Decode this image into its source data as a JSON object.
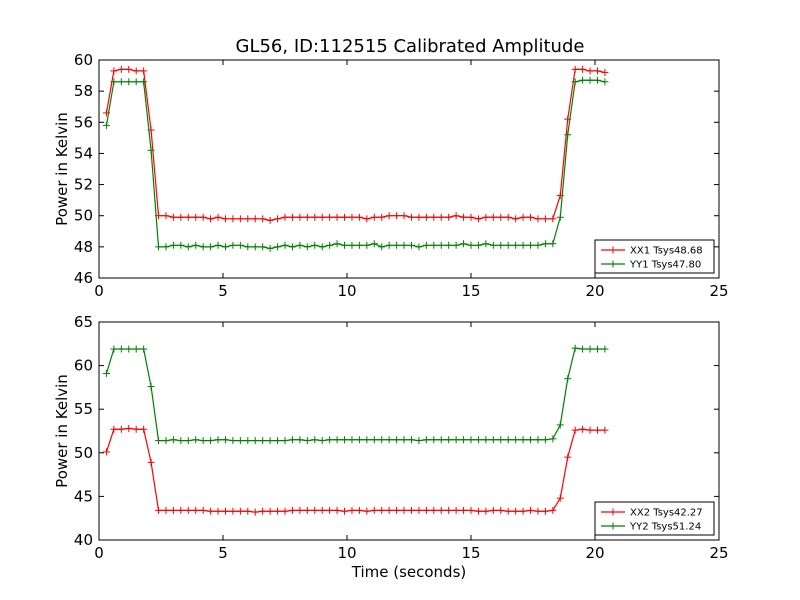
{
  "figure": {
    "title": "GL56, ID:112515 Calibrated Amplitude"
  },
  "chart_data": [
    {
      "type": "line",
      "title": "GL56, ID:112515 Calibrated Amplitude",
      "xlabel": "",
      "ylabel": "Power in Kelvin",
      "xlim": [
        0,
        25
      ],
      "ylim": [
        46,
        60
      ],
      "xticks": [
        0,
        5,
        10,
        15,
        20,
        25
      ],
      "yticks": [
        46,
        48,
        50,
        52,
        54,
        56,
        58,
        60
      ],
      "grid": false,
      "legend_position": "lower-right",
      "series": [
        {
          "name": "XX1 Tsys48.68",
          "color": "#ff0000",
          "x": [
            0.3,
            0.6,
            0.9,
            1.2,
            1.5,
            1.8,
            2.1,
            2.4,
            2.7,
            3.0,
            3.3,
            3.6,
            3.9,
            4.2,
            4.5,
            4.8,
            5.1,
            5.4,
            5.7,
            6.0,
            6.3,
            6.6,
            6.9,
            7.2,
            7.5,
            7.8,
            8.1,
            8.4,
            8.7,
            9.0,
            9.3,
            9.6,
            9.9,
            10.2,
            10.5,
            10.8,
            11.1,
            11.4,
            11.7,
            12.0,
            12.3,
            12.6,
            12.9,
            13.2,
            13.5,
            13.8,
            14.1,
            14.4,
            14.7,
            15.0,
            15.3,
            15.6,
            15.9,
            16.2,
            16.5,
            16.8,
            17.1,
            17.4,
            17.7,
            18.0,
            18.3,
            18.6,
            18.9,
            19.2,
            19.5,
            19.8,
            20.1,
            20.4
          ],
          "y": [
            56.6,
            59.3,
            59.4,
            59.4,
            59.3,
            59.3,
            55.5,
            50.0,
            50.0,
            49.9,
            49.9,
            49.9,
            49.9,
            49.9,
            49.8,
            49.9,
            49.8,
            49.8,
            49.8,
            49.8,
            49.8,
            49.8,
            49.7,
            49.8,
            49.9,
            49.9,
            49.9,
            49.9,
            49.9,
            49.9,
            49.9,
            49.9,
            49.9,
            49.9,
            49.9,
            49.8,
            49.9,
            49.9,
            50.0,
            50.0,
            50.0,
            49.9,
            49.9,
            49.9,
            49.9,
            49.9,
            49.9,
            50.0,
            49.9,
            49.9,
            49.8,
            49.9,
            49.9,
            49.9,
            49.9,
            49.8,
            49.9,
            49.9,
            49.8,
            49.8,
            49.8,
            51.3,
            56.2,
            59.4,
            59.4,
            59.3,
            59.3,
            59.2
          ]
        },
        {
          "name": "YY1 Tsys47.80",
          "color": "#008000",
          "x": [
            0.3,
            0.6,
            0.9,
            1.2,
            1.5,
            1.8,
            2.1,
            2.4,
            2.7,
            3.0,
            3.3,
            3.6,
            3.9,
            4.2,
            4.5,
            4.8,
            5.1,
            5.4,
            5.7,
            6.0,
            6.3,
            6.6,
            6.9,
            7.2,
            7.5,
            7.8,
            8.1,
            8.4,
            8.7,
            9.0,
            9.3,
            9.6,
            9.9,
            10.2,
            10.5,
            10.8,
            11.1,
            11.4,
            11.7,
            12.0,
            12.3,
            12.6,
            12.9,
            13.2,
            13.5,
            13.8,
            14.1,
            14.4,
            14.7,
            15.0,
            15.3,
            15.6,
            15.9,
            16.2,
            16.5,
            16.8,
            17.1,
            17.4,
            17.7,
            18.0,
            18.3,
            18.6,
            18.9,
            19.2,
            19.5,
            19.8,
            20.1,
            20.4
          ],
          "y": [
            55.8,
            58.6,
            58.6,
            58.6,
            58.6,
            58.6,
            54.2,
            48.0,
            48.0,
            48.1,
            48.1,
            48.0,
            48.1,
            48.0,
            48.0,
            48.1,
            48.0,
            48.1,
            48.1,
            48.0,
            48.0,
            48.0,
            47.9,
            48.0,
            48.1,
            48.0,
            48.1,
            48.0,
            48.1,
            48.0,
            48.1,
            48.2,
            48.1,
            48.1,
            48.1,
            48.1,
            48.2,
            48.0,
            48.1,
            48.1,
            48.1,
            48.1,
            48.0,
            48.1,
            48.1,
            48.1,
            48.1,
            48.1,
            48.2,
            48.1,
            48.1,
            48.2,
            48.1,
            48.1,
            48.1,
            48.1,
            48.1,
            48.1,
            48.1,
            48.2,
            48.2,
            49.9,
            55.2,
            58.6,
            58.7,
            58.7,
            58.7,
            58.6
          ]
        }
      ]
    },
    {
      "type": "line",
      "title": "",
      "xlabel": "Time (seconds)",
      "ylabel": "Power in Kelvin",
      "xlim": [
        0,
        25
      ],
      "ylim": [
        40,
        65
      ],
      "xticks": [
        0,
        5,
        10,
        15,
        20,
        25
      ],
      "yticks": [
        40,
        45,
        50,
        55,
        60,
        65
      ],
      "grid": false,
      "legend_position": "lower-right",
      "series": [
        {
          "name": "XX2 Tsys42.27",
          "color": "#ff0000",
          "x": [
            0.3,
            0.6,
            0.9,
            1.2,
            1.5,
            1.8,
            2.1,
            2.4,
            2.7,
            3.0,
            3.3,
            3.6,
            3.9,
            4.2,
            4.5,
            4.8,
            5.1,
            5.4,
            5.7,
            6.0,
            6.3,
            6.6,
            6.9,
            7.2,
            7.5,
            7.8,
            8.1,
            8.4,
            8.7,
            9.0,
            9.3,
            9.6,
            9.9,
            10.2,
            10.5,
            10.8,
            11.1,
            11.4,
            11.7,
            12.0,
            12.3,
            12.6,
            12.9,
            13.2,
            13.5,
            13.8,
            14.1,
            14.4,
            14.7,
            15.0,
            15.3,
            15.6,
            15.9,
            16.2,
            16.5,
            16.8,
            17.1,
            17.4,
            17.7,
            18.0,
            18.3,
            18.6,
            18.9,
            19.2,
            19.5,
            19.8,
            20.1,
            20.4
          ],
          "y": [
            50.1,
            52.7,
            52.7,
            52.8,
            52.7,
            52.7,
            48.9,
            43.4,
            43.4,
            43.4,
            43.4,
            43.4,
            43.4,
            43.4,
            43.3,
            43.3,
            43.3,
            43.3,
            43.3,
            43.3,
            43.2,
            43.3,
            43.3,
            43.3,
            43.3,
            43.4,
            43.4,
            43.4,
            43.4,
            43.4,
            43.4,
            43.4,
            43.3,
            43.4,
            43.4,
            43.3,
            43.4,
            43.4,
            43.4,
            43.4,
            43.4,
            43.4,
            43.4,
            43.4,
            43.4,
            43.4,
            43.4,
            43.4,
            43.4,
            43.4,
            43.3,
            43.3,
            43.4,
            43.4,
            43.3,
            43.3,
            43.3,
            43.4,
            43.3,
            43.3,
            43.4,
            44.8,
            49.5,
            52.6,
            52.7,
            52.6,
            52.6,
            52.6
          ]
        },
        {
          "name": "YY2 Tsys51.24",
          "color": "#008000",
          "x": [
            0.3,
            0.6,
            0.9,
            1.2,
            1.5,
            1.8,
            2.1,
            2.4,
            2.7,
            3.0,
            3.3,
            3.6,
            3.9,
            4.2,
            4.5,
            4.8,
            5.1,
            5.4,
            5.7,
            6.0,
            6.3,
            6.6,
            6.9,
            7.2,
            7.5,
            7.8,
            8.1,
            8.4,
            8.7,
            9.0,
            9.3,
            9.6,
            9.9,
            10.2,
            10.5,
            10.8,
            11.1,
            11.4,
            11.7,
            12.0,
            12.3,
            12.6,
            12.9,
            13.2,
            13.5,
            13.8,
            14.1,
            14.4,
            14.7,
            15.0,
            15.3,
            15.6,
            15.9,
            16.2,
            16.5,
            16.8,
            17.1,
            17.4,
            17.7,
            18.0,
            18.3,
            18.6,
            18.9,
            19.2,
            19.5,
            19.8,
            20.1,
            20.4
          ],
          "y": [
            59.1,
            61.9,
            61.9,
            61.9,
            61.9,
            61.9,
            57.6,
            51.4,
            51.4,
            51.5,
            51.4,
            51.4,
            51.5,
            51.4,
            51.4,
            51.5,
            51.5,
            51.4,
            51.4,
            51.4,
            51.4,
            51.4,
            51.4,
            51.4,
            51.4,
            51.5,
            51.5,
            51.4,
            51.5,
            51.4,
            51.5,
            51.5,
            51.5,
            51.5,
            51.5,
            51.5,
            51.5,
            51.5,
            51.5,
            51.5,
            51.5,
            51.5,
            51.4,
            51.5,
            51.5,
            51.5,
            51.5,
            51.5,
            51.5,
            51.5,
            51.5,
            51.5,
            51.5,
            51.5,
            51.5,
            51.5,
            51.5,
            51.5,
            51.5,
            51.5,
            51.6,
            53.2,
            58.5,
            62.0,
            61.9,
            61.9,
            61.9,
            61.9
          ]
        }
      ]
    }
  ]
}
